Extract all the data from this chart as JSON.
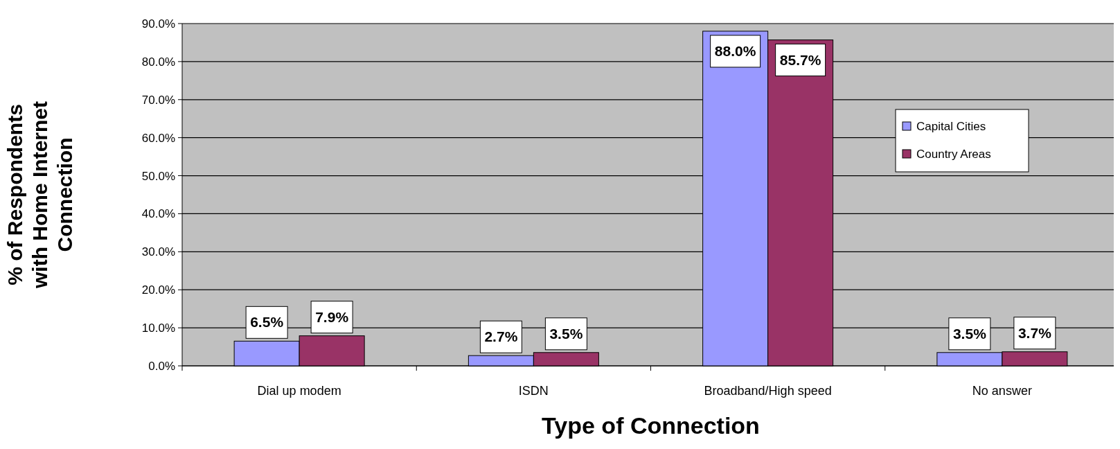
{
  "chart_data": {
    "type": "bar",
    "xlabel": "Type of Connection",
    "ylabel": "% of Respondents with Home Internet Connection",
    "categories": [
      "Dial up modem",
      "ISDN",
      "Broadband/High speed",
      "No answer"
    ],
    "series": [
      {
        "name": "Capital Cities",
        "color": "#9999ff",
        "values": [
          6.5,
          2.7,
          88.0,
          3.5
        ],
        "value_labels": [
          "6.5%",
          "2.7%",
          "88.0%",
          "3.5%"
        ]
      },
      {
        "name": "Country Areas",
        "color": "#993366",
        "values": [
          7.9,
          3.5,
          85.7,
          3.7
        ],
        "value_labels": [
          "7.9%",
          "3.5%",
          "85.7%",
          "3.7%"
        ]
      }
    ],
    "ylim": [
      0,
      90
    ],
    "yticks": [
      {
        "value": 0,
        "label": "0.0%"
      },
      {
        "value": 10,
        "label": "10.0%"
      },
      {
        "value": 20,
        "label": "20.0%"
      },
      {
        "value": 30,
        "label": "30.0%"
      },
      {
        "value": 40,
        "label": "40.0%"
      },
      {
        "value": 50,
        "label": "50.0%"
      },
      {
        "value": 60,
        "label": "60.0%"
      },
      {
        "value": 70,
        "label": "70.0%"
      },
      {
        "value": 80,
        "label": "80.0%"
      },
      {
        "value": 90,
        "label": "90.0%"
      }
    ],
    "grid": "y",
    "legend": "right"
  }
}
